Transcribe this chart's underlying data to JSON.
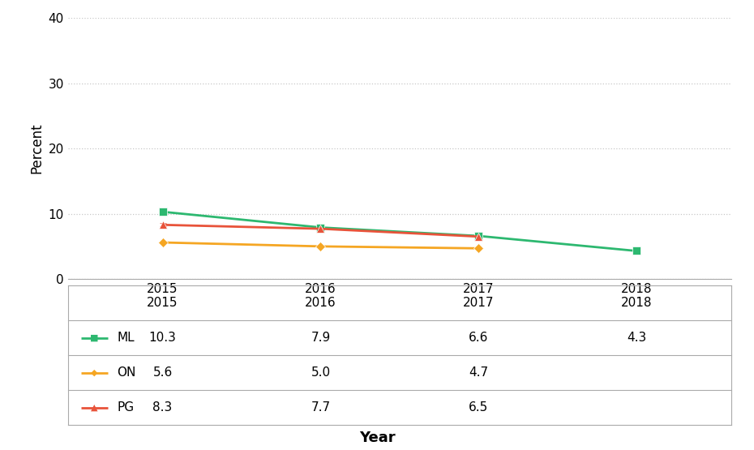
{
  "series": [
    {
      "label": "ML",
      "color": "#2db870",
      "marker": "s",
      "years": [
        2015,
        2016,
        2017,
        2018
      ],
      "values": [
        10.3,
        7.9,
        6.6,
        4.3
      ],
      "errors": [
        0.45,
        0.35,
        0.3,
        0.22
      ]
    },
    {
      "label": "ON",
      "color": "#f5a623",
      "marker": "D",
      "years": [
        2015,
        2016,
        2017
      ],
      "values": [
        5.6,
        5.0,
        4.7
      ],
      "errors": [
        0.0,
        0.0,
        0.0
      ]
    },
    {
      "label": "PG",
      "color": "#e8533a",
      "marker": "^",
      "years": [
        2015,
        2016,
        2017
      ],
      "values": [
        8.3,
        7.7,
        6.5
      ],
      "errors": [
        0.25,
        0.22,
        0.2
      ]
    }
  ],
  "xlabel": "Year",
  "ylabel": "Percent",
  "ylim": [
    0,
    40
  ],
  "yticks": [
    0,
    10,
    20,
    30,
    40
  ],
  "xticks": [
    2015,
    2016,
    2017,
    2018
  ],
  "xlim": [
    2014.4,
    2018.6
  ],
  "background_color": "#ffffff",
  "grid_color": "#c8c8c8",
  "table_years": [
    "2015",
    "2016",
    "2017",
    "2018"
  ],
  "table_data": [
    [
      "ML",
      "10.3",
      "7.9",
      "6.6",
      "4.3"
    ],
    [
      "ON",
      "5.6",
      "5.0",
      "4.7",
      ""
    ],
    [
      "PG",
      "8.3",
      "7.7",
      "6.5",
      ""
    ]
  ],
  "series_colors": [
    "#2db870",
    "#f5a623",
    "#e8533a"
  ],
  "series_markers": [
    "s",
    "D",
    "^"
  ]
}
